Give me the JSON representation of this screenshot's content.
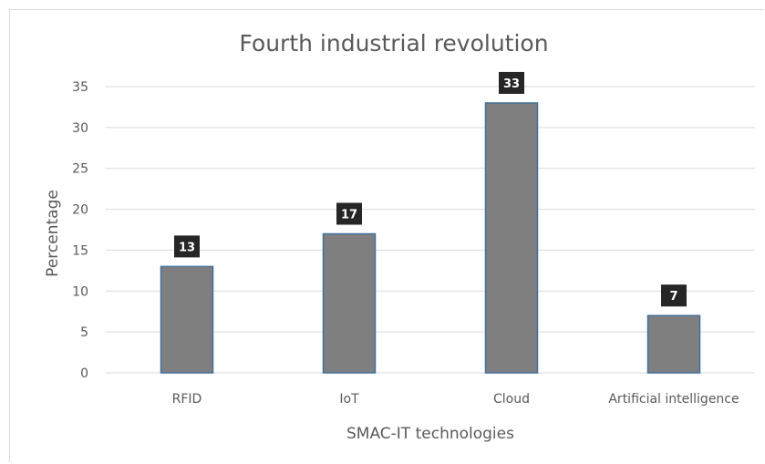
{
  "chart_data": {
    "type": "bar",
    "title": "Fourth industrial  revolution",
    "xlabel": "SMAC-IT technologies",
    "ylabel": "Percentage",
    "categories": [
      "RFID",
      "IoT",
      "Cloud",
      "Artificial intelligence"
    ],
    "values": [
      13,
      17,
      33,
      7
    ],
    "data_labels": [
      "13",
      "17",
      "33",
      "7"
    ],
    "yticks": [
      0,
      5,
      10,
      15,
      20,
      25,
      30,
      35
    ],
    "ylim": [
      0,
      35
    ],
    "grid": true,
    "legend": "none",
    "colors": {
      "bar_fill": "#7f7f7f",
      "bar_stroke": "#41719c",
      "label_box": "#262626",
      "grid": "#d9d9d9",
      "text": "#595959"
    }
  }
}
